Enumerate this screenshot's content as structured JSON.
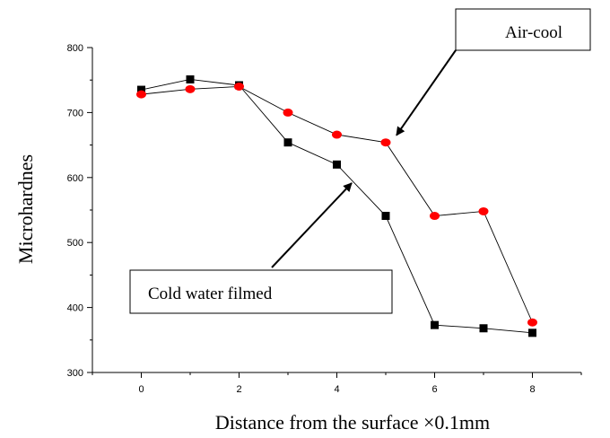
{
  "chart_data": {
    "type": "line",
    "xlabel": "Distance from the surface ×0.1mm",
    "ylabel": "Microhardnes",
    "xlim": [
      -1,
      9
    ],
    "ylim": [
      300,
      800
    ],
    "x_ticks": [
      0,
      2,
      4,
      6,
      8
    ],
    "y_ticks": [
      300,
      400,
      500,
      600,
      700,
      800
    ],
    "grid": false,
    "series": [
      {
        "name": "Cold water filmed",
        "marker": "square",
        "color": "#000000",
        "x": [
          0,
          1,
          2,
          3,
          4,
          5,
          6,
          7,
          8
        ],
        "y": [
          735,
          751,
          742,
          654,
          620,
          541,
          373,
          368,
          361
        ]
      },
      {
        "name": "Air-cool",
        "marker": "circle",
        "color": "#ff0000",
        "x": [
          0,
          1,
          2,
          3,
          4,
          5,
          6,
          7,
          8
        ],
        "y": [
          728,
          736,
          740,
          700,
          666,
          654,
          541,
          548,
          377
        ]
      }
    ],
    "annotations": [
      {
        "text": "Air-cool",
        "points_to": {
          "series": 1,
          "x": 5,
          "y": 654
        }
      },
      {
        "text": "Cold water filmed",
        "points_to": {
          "series": 0,
          "x": 4,
          "y": 620
        }
      }
    ]
  }
}
